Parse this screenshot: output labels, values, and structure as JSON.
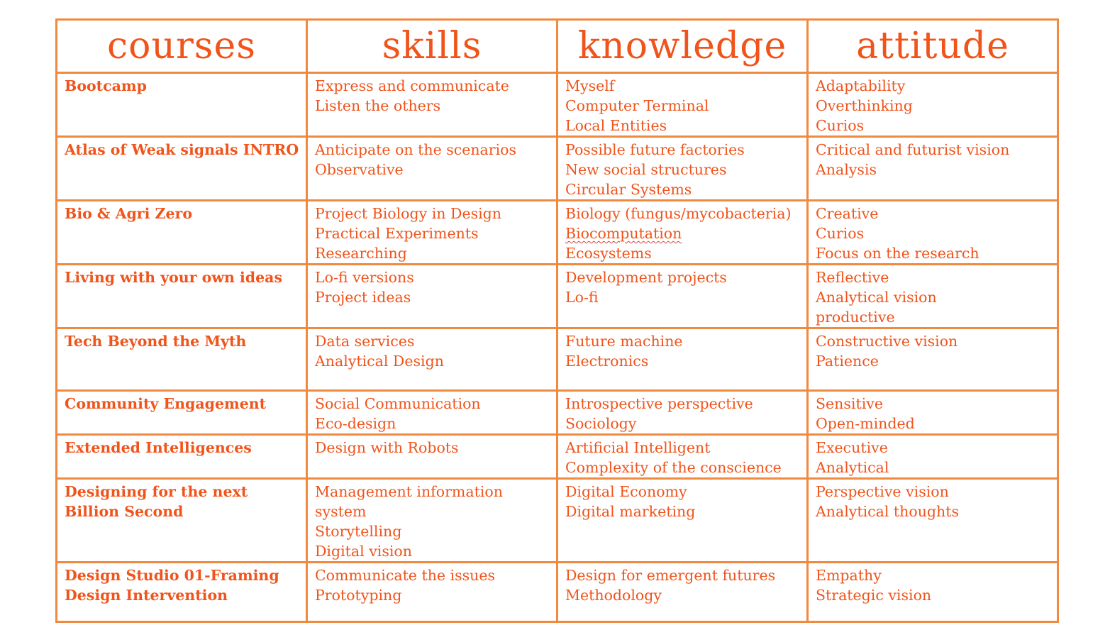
{
  "table": {
    "headers": [
      "courses",
      "skills",
      "knowledge",
      "attitude"
    ],
    "rows": [
      {
        "course": "Bootcamp",
        "skills": [
          "Express and communicate",
          "Listen the others"
        ],
        "knowledge": [
          "Myself",
          "Computer Terminal",
          "Local Entities"
        ],
        "attitude": [
          "Adaptability",
          "Overthinking",
          "Curios"
        ]
      },
      {
        "course": "Atlas of Weak signals INTRO",
        "skills": [
          "Anticipate on the scenarios",
          "Observative"
        ],
        "knowledge": [
          "Possible future factories",
          "New social structures",
          "Circular Systems"
        ],
        "attitude": [
          "Critical and futurist vision",
          "Analysis"
        ]
      },
      {
        "course": "Bio & Agri Zero",
        "skills": [
          "Project Biology in Design",
          "Practical Experiments",
          "Researching"
        ],
        "knowledge": [
          "Biology (fungus/mycobacteria)",
          "Biocomputation",
          "Ecosystems"
        ],
        "attitude": [
          "Creative",
          "Curios",
          "Focus on the research"
        ]
      },
      {
        "course": "Living with your own ideas",
        "skills": [
          "Lo-fi versions",
          "Project ideas"
        ],
        "knowledge": [
          "Development projects",
          "Lo-fi"
        ],
        "attitude": [
          "Reflective",
          "Analytical vision",
          "productive"
        ]
      },
      {
        "course": "Tech Beyond the Myth",
        "skills": [
          "Data services",
          "Analytical Design"
        ],
        "knowledge": [
          "Future machine",
          "Electronics"
        ],
        "attitude": [
          "Constructive vision",
          "Patience"
        ]
      },
      {
        "course": "Community Engagement",
        "skills": [
          "Social Communication",
          "Eco-design"
        ],
        "knowledge": [
          "Introspective perspective",
          "Sociology"
        ],
        "attitude": [
          "Sensitive",
          "Open-minded"
        ]
      },
      {
        "course": "Extended Intelligences",
        "skills": [
          "Design with Robots"
        ],
        "knowledge": [
          "Artificial Intelligent",
          "Complexity of the conscience"
        ],
        "attitude": [
          "Executive",
          "Analytical"
        ]
      },
      {
        "course": "Designing for the next Billion Second",
        "skills": [
          "Management information",
          "system",
          "Storytelling",
          "Digital vision"
        ],
        "knowledge": [
          "Digital Economy",
          "Digital marketing"
        ],
        "attitude": [
          "Perspective vision",
          "Analytical thoughts"
        ]
      },
      {
        "course": "Design Studio 01-Framing Design Intervention",
        "skills": [
          "Communicate the issues",
          "Prototyping"
        ],
        "knowledge": [
          "Design for emergent futures",
          "Methodology"
        ],
        "attitude": [
          "Empathy",
          "Strategic vision"
        ]
      }
    ]
  }
}
